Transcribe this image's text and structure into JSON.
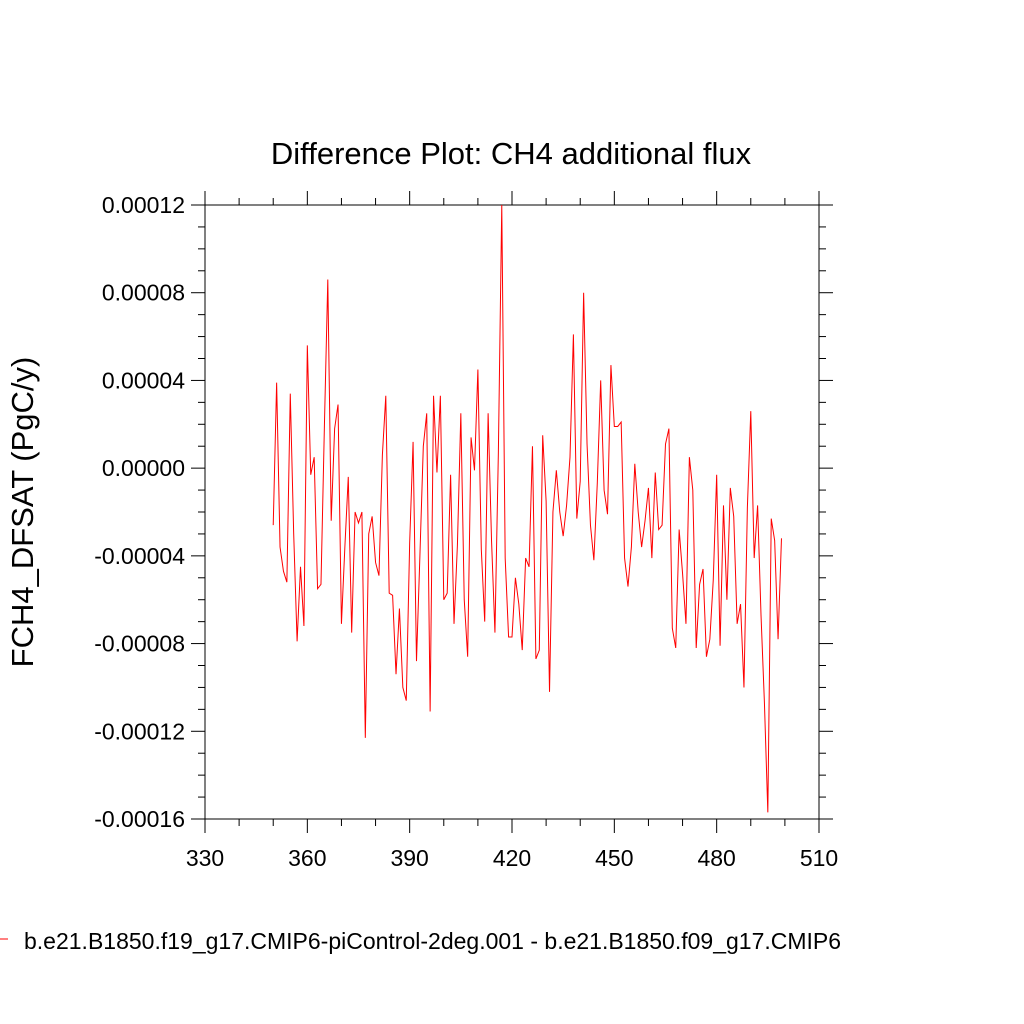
{
  "chart_data": {
    "type": "line",
    "title": "Difference Plot: CH4 additional flux",
    "xlabel": "",
    "ylabel": "FCH4_DFSAT  (PgC/y)",
    "xlim": [
      330,
      510
    ],
    "ylim": [
      -0.00016,
      0.00012
    ],
    "x_ticks": [
      330,
      360,
      390,
      420,
      450,
      480,
      510
    ],
    "x_tick_labels": [
      "330",
      "360",
      "390",
      "420",
      "450",
      "480",
      "510"
    ],
    "y_ticks": [
      -0.00016,
      -0.00012,
      -8e-05,
      -4e-05,
      0.0,
      4e-05,
      8e-05,
      0.00012
    ],
    "y_tick_labels": [
      "-0.00016",
      "-0.00012",
      "-0.00008",
      "-0.00004",
      "0.00000",
      "0.00004",
      "0.00008",
      "0.00012"
    ],
    "grid": false,
    "legend_position": "bottom",
    "series": [
      {
        "name": "b.e21.B1850.f19_g17.CMIP6-piControl-2deg.001 - b.e21.B1850.f09_g17.CMIP6",
        "color": "#ff0000",
        "x": [
          350,
          351,
          352,
          353,
          354,
          355,
          356,
          357,
          358,
          359,
          360,
          361,
          362,
          363,
          364,
          365,
          366,
          367,
          368,
          369,
          370,
          371,
          372,
          373,
          374,
          375,
          376,
          377,
          378,
          379,
          380,
          381,
          382,
          383,
          384,
          385,
          386,
          387,
          388,
          389,
          390,
          391,
          392,
          393,
          394,
          395,
          396,
          397,
          398,
          399,
          400,
          401,
          402,
          403,
          404,
          405,
          406,
          407,
          408,
          409,
          410,
          411,
          412,
          413,
          414,
          415,
          416,
          417,
          418,
          419,
          420,
          421,
          422,
          423,
          424,
          425,
          426,
          427,
          428,
          429,
          430,
          431,
          432,
          433,
          434,
          435,
          436,
          437,
          438,
          439,
          440,
          441,
          442,
          443,
          444,
          445,
          446,
          447,
          448,
          449,
          450,
          451,
          452,
          453,
          454,
          455,
          456,
          457,
          458,
          459,
          460,
          461,
          462,
          463,
          464,
          465,
          466,
          467,
          468,
          469,
          470,
          471,
          472,
          473,
          474,
          475,
          476,
          477,
          478,
          479,
          480,
          481,
          482,
          483,
          484,
          485,
          486,
          487,
          488,
          489,
          490,
          491,
          492,
          493,
          494,
          495,
          496,
          497,
          498,
          499
        ],
        "y": [
          -2.6e-05,
          3.9e-05,
          -3.6e-05,
          -4.7e-05,
          -5.2e-05,
          3.4e-05,
          -3e-05,
          -7.9e-05,
          -4.5e-05,
          -7.2e-05,
          5.6e-05,
          -3e-06,
          5e-06,
          -5.5e-05,
          -5.3e-05,
          1.9e-05,
          8.6e-05,
          -2.4e-05,
          1.8e-05,
          2.9e-05,
          -7.1e-05,
          -3.6e-05,
          -4e-06,
          -7.5e-05,
          -2e-05,
          -2.5e-05,
          -2e-05,
          -0.000123,
          -3e-05,
          -2.2e-05,
          -4.3e-05,
          -4.9e-05,
          6e-06,
          3.3e-05,
          -5.7e-05,
          -5.8e-05,
          -9.4e-05,
          -6.4e-05,
          -0.0001,
          -0.000106,
          -3.4e-05,
          1.2e-05,
          -8.8e-05,
          -4e-05,
          1e-05,
          2.5e-05,
          -0.000111,
          3.3e-05,
          -2e-06,
          3.3e-05,
          -6e-05,
          -5.7e-05,
          -3e-06,
          -7.1e-05,
          -3.5e-05,
          2.5e-05,
          -6e-05,
          -8.6e-05,
          1.4e-05,
          -1e-06,
          4.5e-05,
          -3.7e-05,
          -7e-05,
          2.5e-05,
          -3.3e-05,
          -7.5e-05,
          7e-06,
          0.00012,
          -4.1e-05,
          -7.7e-05,
          -7.7e-05,
          -5e-05,
          -6.2e-05,
          -8.3e-05,
          -4.1e-05,
          -4.5e-05,
          1e-05,
          -8.7e-05,
          -8.3e-05,
          1.5e-05,
          -1.5e-05,
          -0.000102,
          -2e-05,
          -1e-06,
          -2e-05,
          -3.1e-05,
          -1.7e-05,
          5e-06,
          6.1e-05,
          -2.3e-05,
          -6e-06,
          8e-05,
          1.1e-05,
          -2.6e-05,
          -4.2e-05,
          -7e-06,
          4e-05,
          -1e-05,
          -2.1e-05,
          4.7e-05,
          1.9e-05,
          1.9e-05,
          2.1e-05,
          -4.1e-05,
          -5.4e-05,
          -3.6e-05,
          2e-06,
          -2e-05,
          -3.6e-05,
          -2.4e-05,
          -9e-06,
          -4.1e-05,
          -2e-06,
          -2.8e-05,
          -2.6e-05,
          1.1e-05,
          1.8e-05,
          -7.3e-05,
          -8.2e-05,
          -2.8e-05,
          -4.8e-05,
          -7.1e-05,
          5e-06,
          -1e-05,
          -8.2e-05,
          -5.3e-05,
          -4.6e-05,
          -8.6e-05,
          -7.8e-05,
          -5.1e-05,
          -3e-06,
          -8.1e-05,
          -1.7e-05,
          -6e-05,
          -9e-06,
          -2.2e-05,
          -7.1e-05,
          -6.2e-05,
          -0.0001,
          -1.8e-05,
          2.6e-05,
          -4.1e-05,
          -1.7e-05,
          -6.7e-05,
          -0.000107,
          -0.000157,
          -2.3e-05,
          -3.3e-05,
          -7.8e-05,
          -3.2e-05
        ]
      }
    ]
  }
}
